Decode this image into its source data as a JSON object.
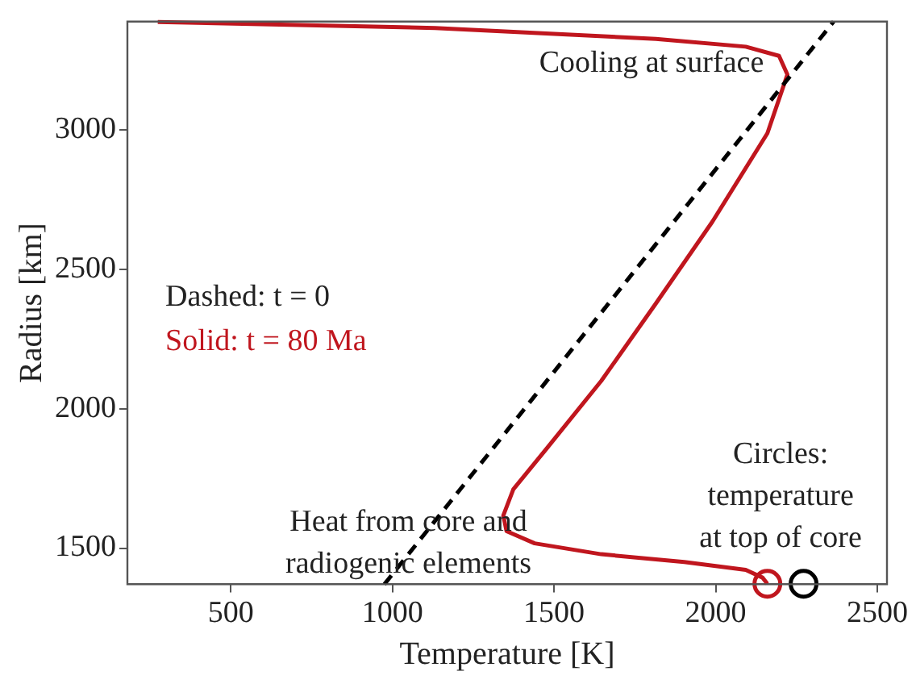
{
  "chart_data": {
    "type": "line",
    "xlabel": "Temperature [K]",
    "ylabel": "Radius [km]",
    "xlim": [
      180,
      2530
    ],
    "xticks": [
      500,
      1000,
      1500,
      2000,
      2500
    ],
    "ylim": [
      1370,
      3390
    ],
    "yticks": [
      1500,
      2000,
      2500,
      3000
    ],
    "grid": false,
    "legend": false,
    "series": [
      {
        "type": "line",
        "color": "#000000",
        "line_style": "dashed",
        "marker": "none",
        "x": [
          975,
          2365
        ],
        "values": [
          1370,
          3390
        ]
      },
      {
        "type": "line",
        "color": "#c0161e",
        "line_style": "solid",
        "marker": "none",
        "x": [
          274,
          1132,
          1815,
          2093,
          2196,
          2222,
          2160,
          1990,
          1815,
          1646,
          1476,
          1374,
          1343,
          1353,
          1440,
          1646,
          1903,
          2093,
          2145,
          2160
        ],
        "values": [
          3389,
          3367,
          3328,
          3300,
          3267,
          3200,
          2989,
          2672,
          2378,
          2100,
          1856,
          1711,
          1617,
          1561,
          1517,
          1478,
          1450,
          1422,
          1394,
          1372
        ]
      },
      {
        "type": "scatter",
        "color": "#c0161e",
        "marker": "circle",
        "x": [
          2160
        ],
        "values": [
          1372
        ]
      },
      {
        "type": "scatter",
        "color": "#000000",
        "marker": "circle",
        "x": [
          2272
        ],
        "values": [
          1372
        ]
      }
    ],
    "annotations": [
      "Cooling at surface",
      "Heat from core and\nradiogenic elements",
      "Circles:\ntemperature\nat top of core",
      "Dashed: t = 0",
      "Solid: t = 80 Ma"
    ]
  }
}
